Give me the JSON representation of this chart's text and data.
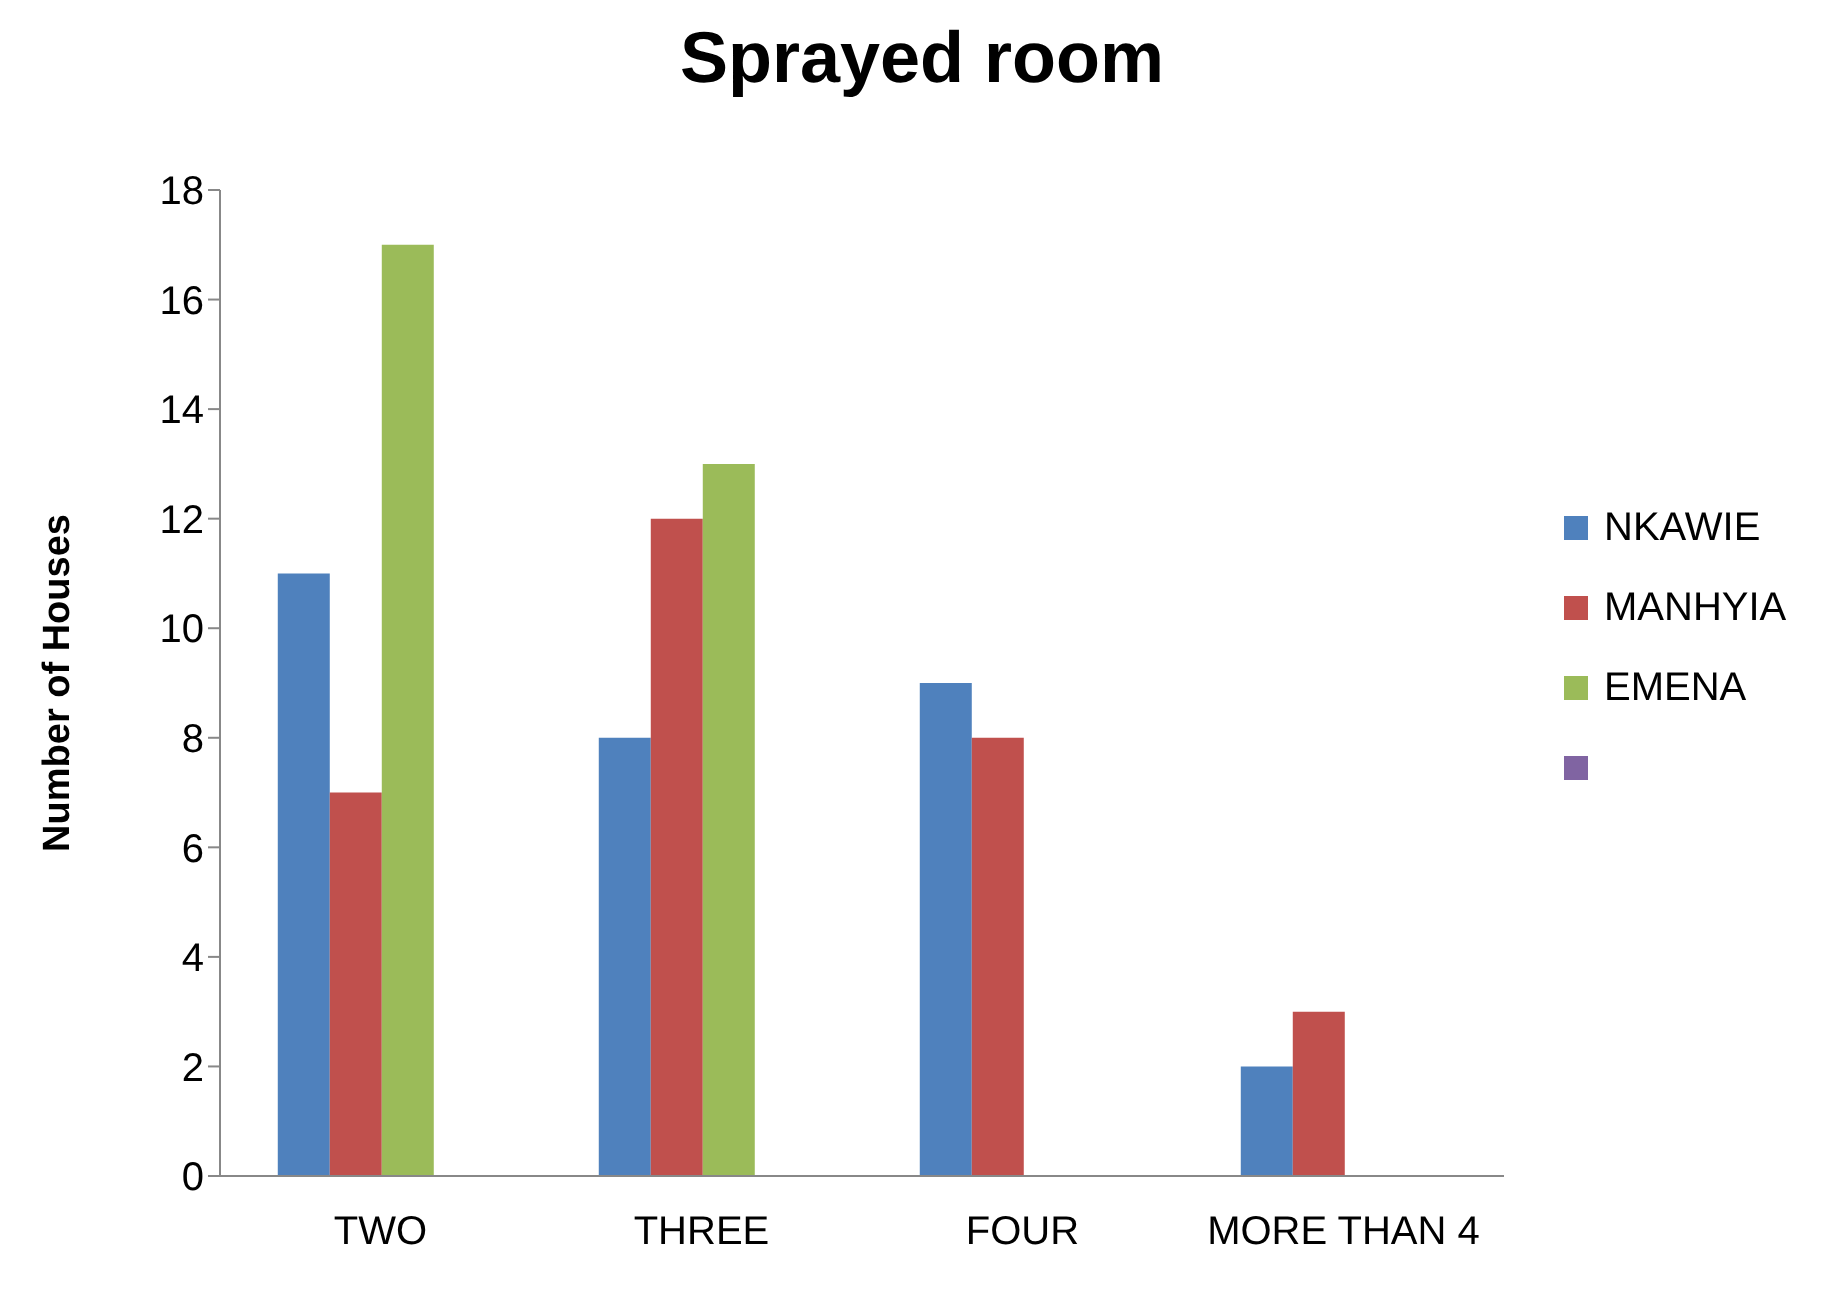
{
  "chart_data": {
    "type": "bar",
    "title": "Sprayed room",
    "ylabel": "Number of Houses",
    "categories": [
      "TWO",
      "THREE",
      "FOUR",
      "MORE THAN 4"
    ],
    "series": [
      {
        "name": "NKAWIE",
        "color": "#4f81bd",
        "values": [
          11,
          8,
          9,
          2
        ]
      },
      {
        "name": "MANHYIA",
        "color": "#c0504d",
        "values": [
          7,
          12,
          8,
          3
        ]
      },
      {
        "name": "EMENA",
        "color": "#9bbb59",
        "values": [
          17,
          13,
          null,
          null
        ]
      },
      {
        "color": "#8064a2",
        "values": [
          null,
          null,
          null,
          null
        ]
      }
    ],
    "ylim": [
      0,
      18
    ],
    "yticks": [
      0,
      2,
      4,
      6,
      8,
      10,
      12,
      14,
      16,
      18
    ],
    "grid": false,
    "legend": "right"
  }
}
